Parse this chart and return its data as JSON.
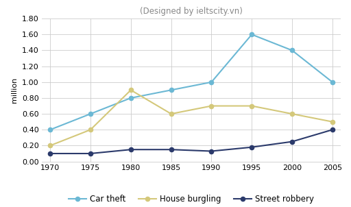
{
  "title": "(Designed by ieltscity.vn)",
  "ylabel": "million",
  "years": [
    1970,
    1975,
    1980,
    1985,
    1990,
    1995,
    2000,
    2005
  ],
  "series": {
    "Car theft": {
      "values": [
        0.4,
        0.6,
        0.8,
        0.9,
        1.0,
        1.6,
        1.4,
        1.0
      ],
      "color": "#6bb8d4",
      "marker": "o",
      "linewidth": 1.5,
      "markersize": 4.5
    },
    "House burgling": {
      "values": [
        0.2,
        0.4,
        0.9,
        0.6,
        0.7,
        0.7,
        0.6,
        0.5
      ],
      "color": "#d4c87a",
      "marker": "o",
      "linewidth": 1.5,
      "markersize": 4.5
    },
    "Street robbery": {
      "values": [
        0.1,
        0.1,
        0.15,
        0.15,
        0.13,
        0.18,
        0.25,
        0.4
      ],
      "color": "#2b3a6b",
      "marker": "o",
      "linewidth": 1.5,
      "markersize": 4.5
    }
  },
  "ylim": [
    0.0,
    1.8
  ],
  "yticks": [
    0.0,
    0.2,
    0.4,
    0.6,
    0.8,
    1.0,
    1.2,
    1.4,
    1.6,
    1.8
  ],
  "background_color": "#ffffff",
  "grid_color": "#cccccc",
  "title_fontsize": 8.5,
  "axis_fontsize": 8,
  "legend_fontsize": 8.5,
  "ylabel_fontsize": 8
}
